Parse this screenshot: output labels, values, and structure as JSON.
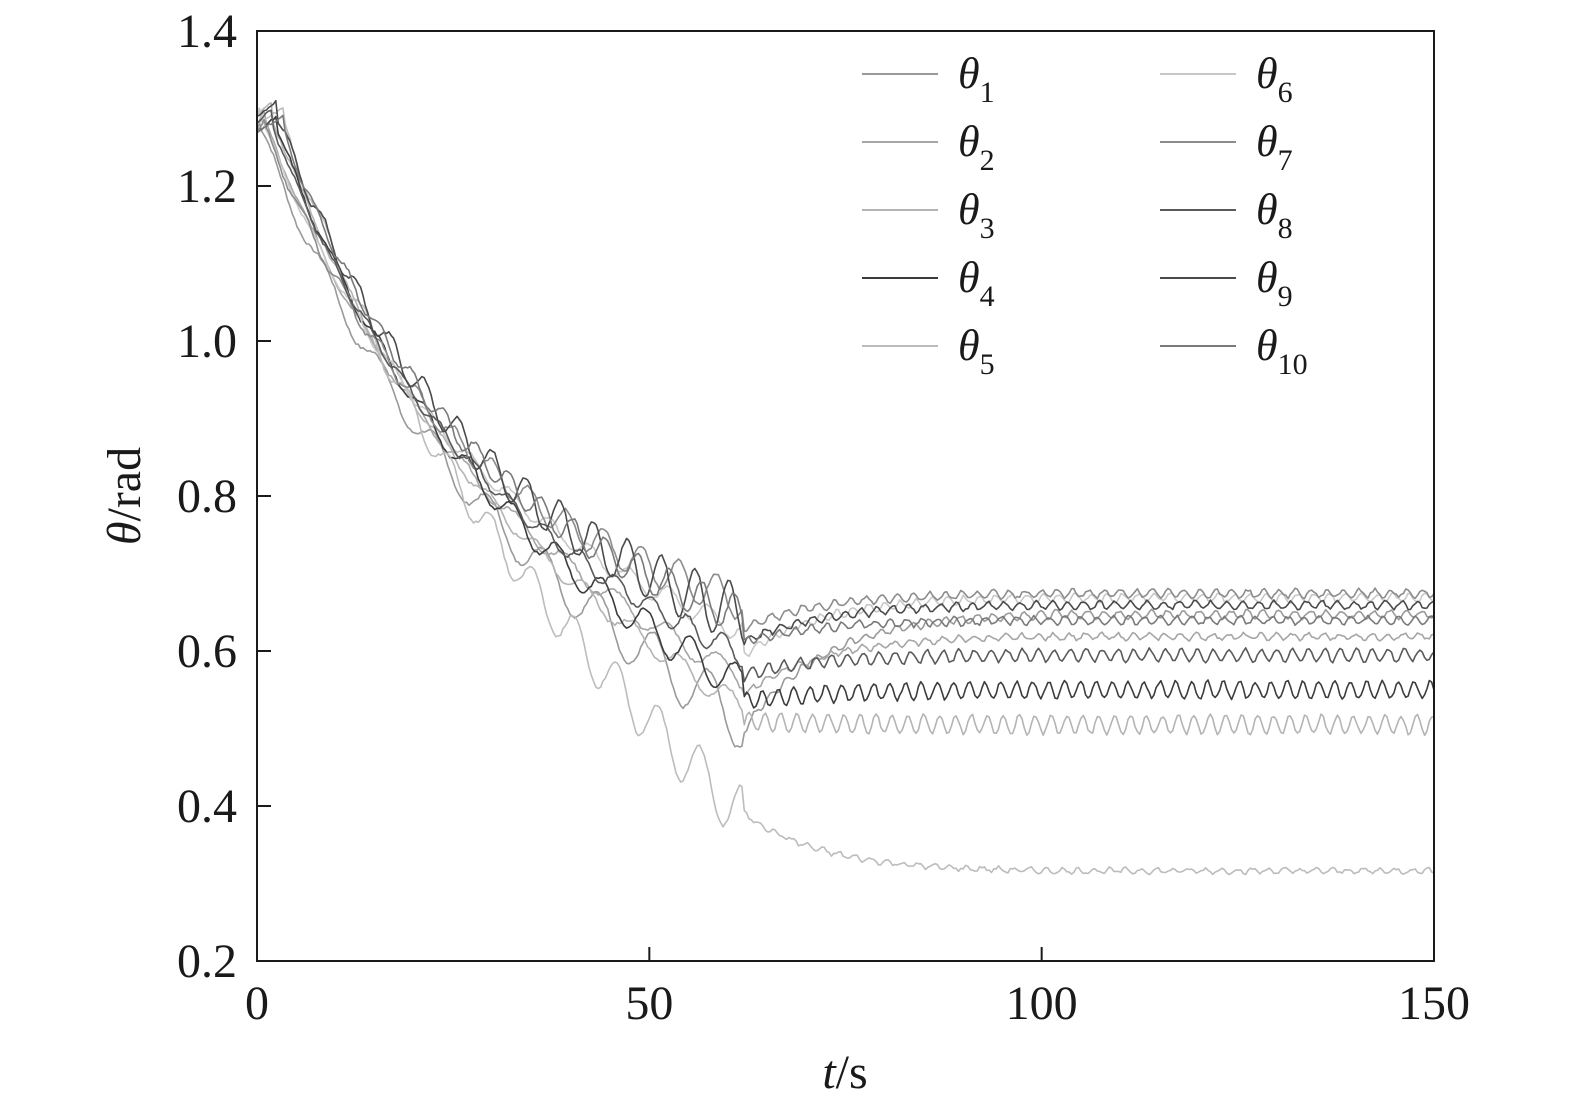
{
  "chart_data": {
    "type": "line",
    "xlabel_var": "t",
    "xlabel_unit": "/s",
    "ylabel_var": "θ",
    "ylabel_unit": "/rad",
    "xlim": [
      0,
      150
    ],
    "ylim": [
      0.2,
      1.4
    ],
    "xticks": [
      0,
      50,
      100,
      150
    ],
    "xtick_labels": [
      "0",
      "50",
      "100",
      "150"
    ],
    "yticks": [
      0.2,
      0.4,
      0.6,
      0.8,
      1.0,
      1.2,
      1.4
    ],
    "ytick_labels": [
      "0.2",
      "0.4",
      "0.6",
      "0.8",
      "1.0",
      "1.2",
      "1.4"
    ],
    "grid": false,
    "legend_position": "top-right, two columns",
    "series": [
      {
        "name": "θ",
        "subscript": "1",
        "color": "#9a9a9a",
        "final_value": 0.65,
        "low_value": 0.465,
        "amplitude": 0.005
      },
      {
        "name": "θ",
        "subscript": "2",
        "color": "#a6a6a6",
        "final_value": 0.62,
        "low_value": 0.52,
        "amplitude": 0.004
      },
      {
        "name": "θ",
        "subscript": "3",
        "color": "#b4b4b4",
        "final_value": 0.505,
        "low_value": 0.48,
        "amplitude": 0.012
      },
      {
        "name": "θ",
        "subscript": "4",
        "color": "#3c3c3c",
        "final_value": 0.55,
        "low_value": 0.51,
        "amplitude": 0.011
      },
      {
        "name": "θ",
        "subscript": "5",
        "color": "#bcbcbc",
        "final_value": 0.315,
        "low_value": 0.34,
        "amplitude": 0.003
      },
      {
        "name": "θ",
        "subscript": "6",
        "color": "#c8c8c8",
        "final_value": 0.67,
        "low_value": 0.58,
        "amplitude": 0.005
      },
      {
        "name": "θ",
        "subscript": "7",
        "color": "#8c8c8c",
        "final_value": 0.675,
        "low_value": 0.62,
        "amplitude": 0.005
      },
      {
        "name": "θ",
        "subscript": "8",
        "color": "#5a5a5a",
        "final_value": 0.595,
        "low_value": 0.55,
        "amplitude": 0.008
      },
      {
        "name": "θ",
        "subscript": "9",
        "color": "#4a4a4a",
        "final_value": 0.66,
        "low_value": 0.6,
        "amplitude": 0.005
      },
      {
        "name": "θ",
        "subscript": "10",
        "color": "#7a7a7a",
        "final_value": 0.64,
        "low_value": 0.6,
        "amplitude": 0.005
      }
    ],
    "accent_colors": [
      "#e8961e",
      "#d63c6e",
      "#3c78d6",
      "#d6c83c",
      "#3cb4b4"
    ]
  }
}
